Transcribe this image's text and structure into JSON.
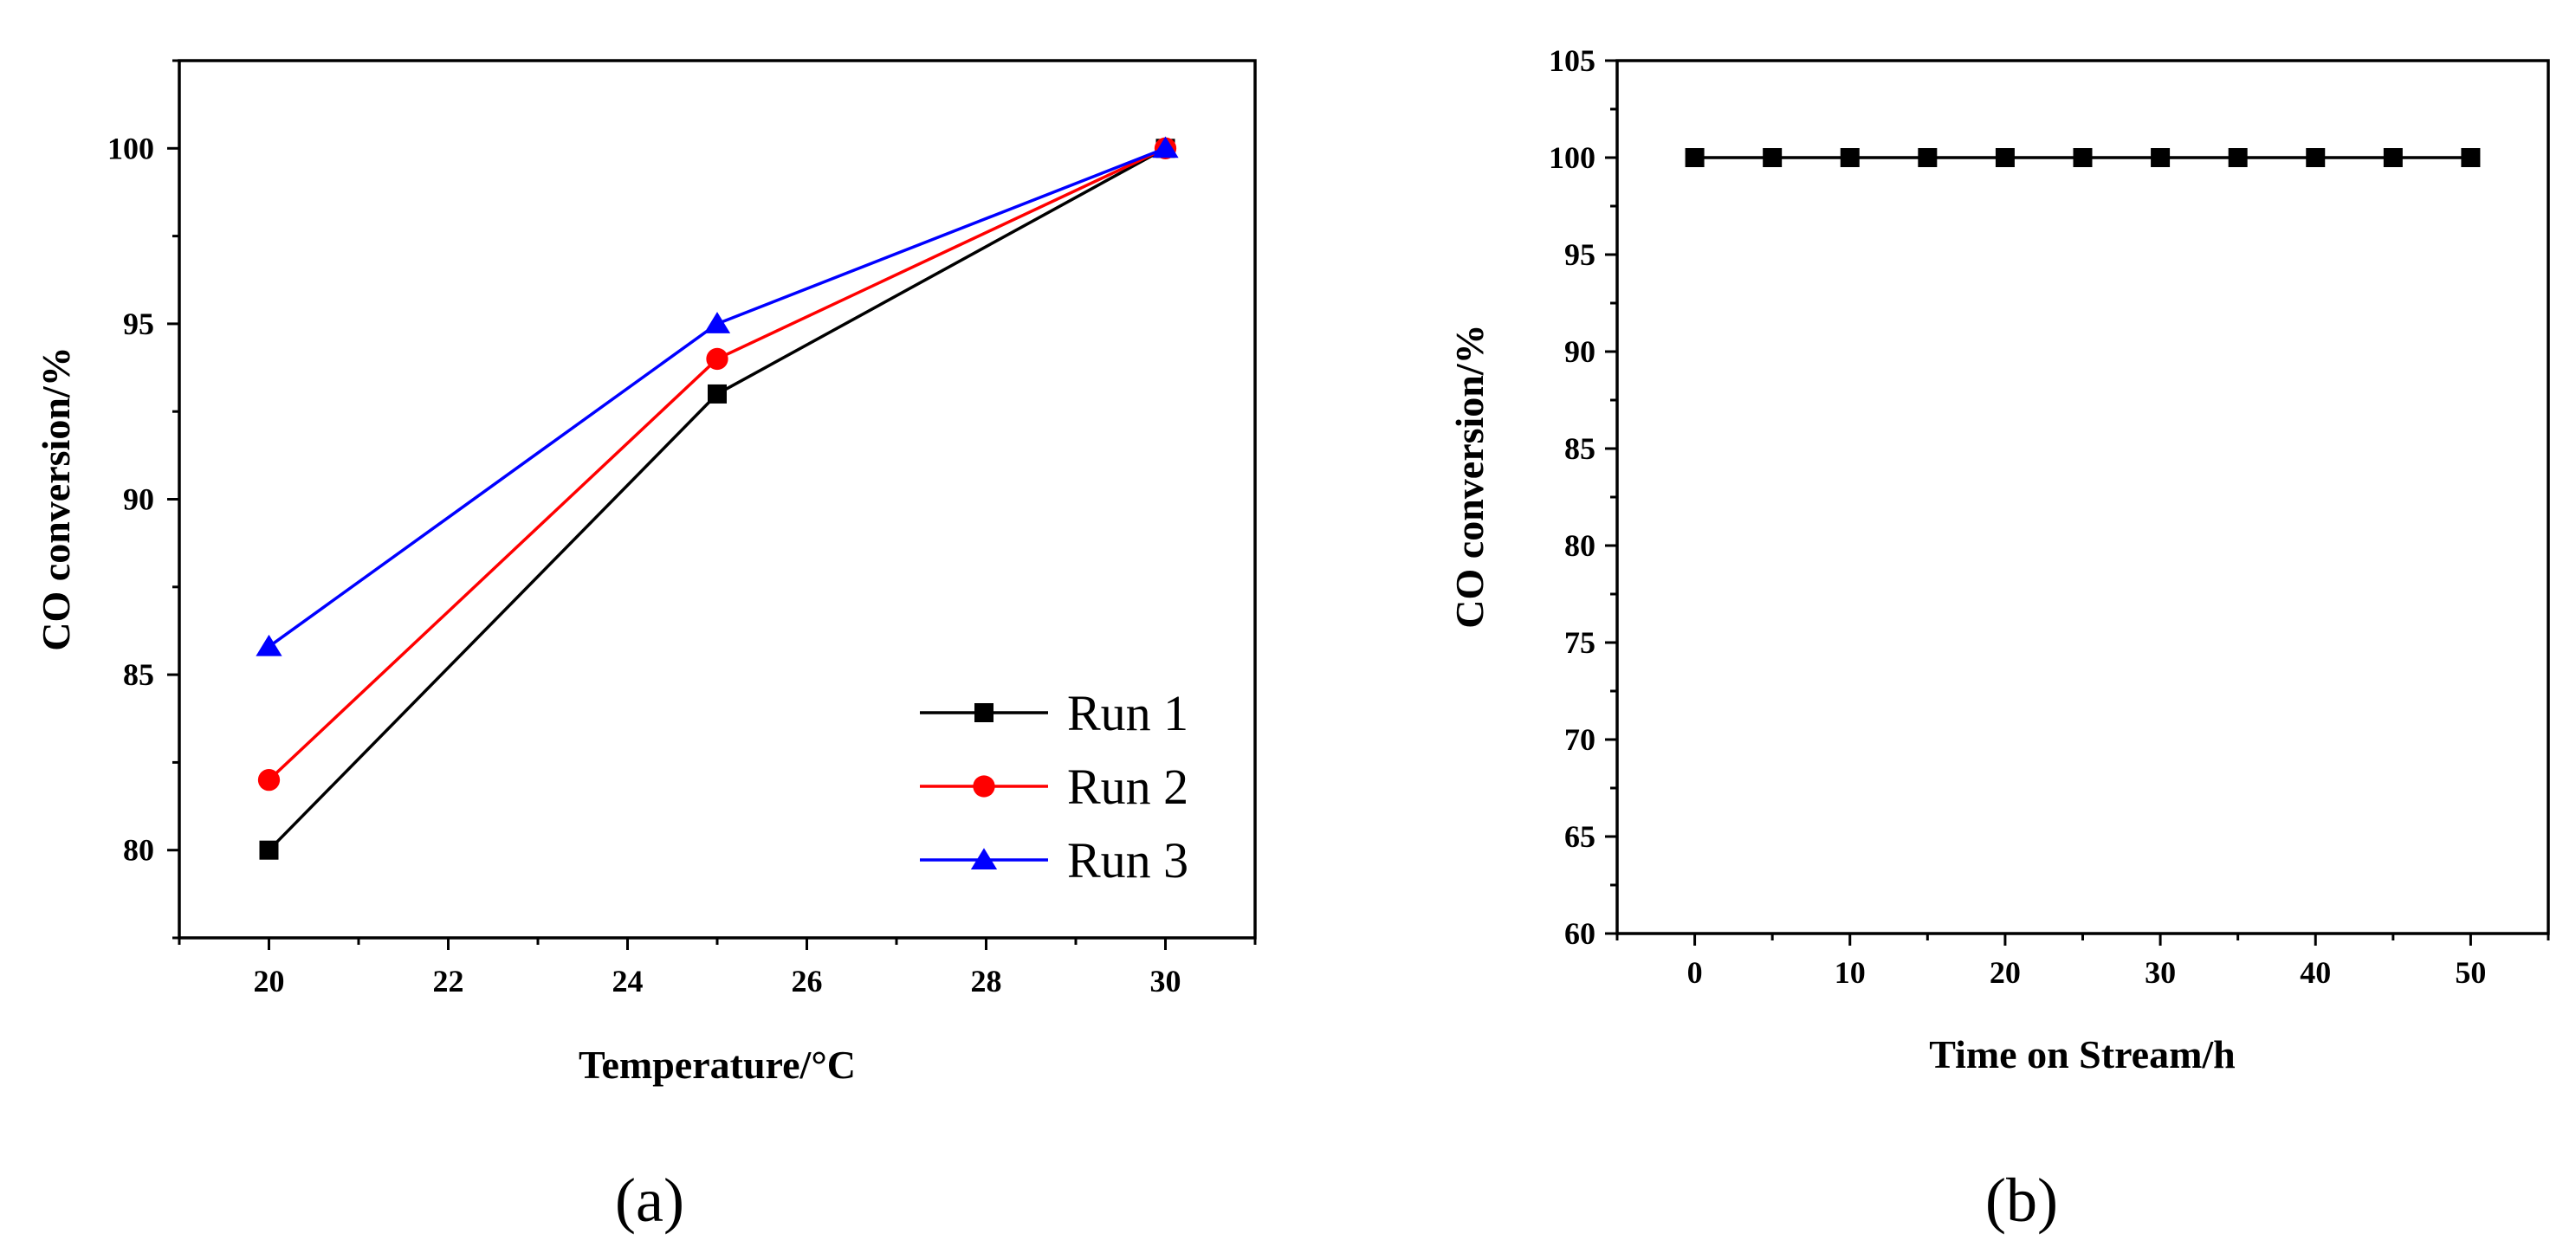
{
  "chart_data": [
    {
      "id": "a",
      "type": "line",
      "panel_label": "(a)",
      "xlabel": "Temperature/°C",
      "ylabel": "CO conversion/%",
      "xlim": [
        19,
        31
      ],
      "ylim": [
        77.5,
        102.5
      ],
      "xticks": [
        20,
        22,
        24,
        26,
        28,
        30
      ],
      "yticks": [
        80,
        85,
        90,
        95,
        100
      ],
      "legend_position": "bottom-right",
      "series": [
        {
          "name": "Run 1",
          "color": "#000000",
          "marker": "square",
          "x": [
            20,
            25,
            30
          ],
          "y": [
            80,
            93,
            100
          ]
        },
        {
          "name": "Run 2",
          "color": "#ff0000",
          "marker": "circle",
          "x": [
            20,
            25,
            30
          ],
          "y": [
            82,
            94,
            100
          ]
        },
        {
          "name": "Run 3",
          "color": "#0000ff",
          "marker": "triangle",
          "x": [
            20,
            25,
            30
          ],
          "y": [
            85.8,
            95,
            100
          ]
        }
      ]
    },
    {
      "id": "b",
      "type": "line",
      "panel_label": "(b)",
      "xlabel": "Time on Stream/h",
      "ylabel": "CO conversion/%",
      "xlim": [
        -5,
        55
      ],
      "ylim": [
        60,
        105
      ],
      "xticks": [
        0,
        10,
        20,
        30,
        40,
        50
      ],
      "yticks": [
        60,
        65,
        70,
        75,
        80,
        85,
        90,
        95,
        100,
        105
      ],
      "series": [
        {
          "name": "",
          "color": "#000000",
          "marker": "square",
          "x": [
            0,
            5,
            10,
            15,
            20,
            25,
            30,
            35,
            40,
            45,
            50
          ],
          "y": [
            100,
            100,
            100,
            100,
            100,
            100,
            100,
            100,
            100,
            100,
            100
          ]
        }
      ]
    }
  ]
}
